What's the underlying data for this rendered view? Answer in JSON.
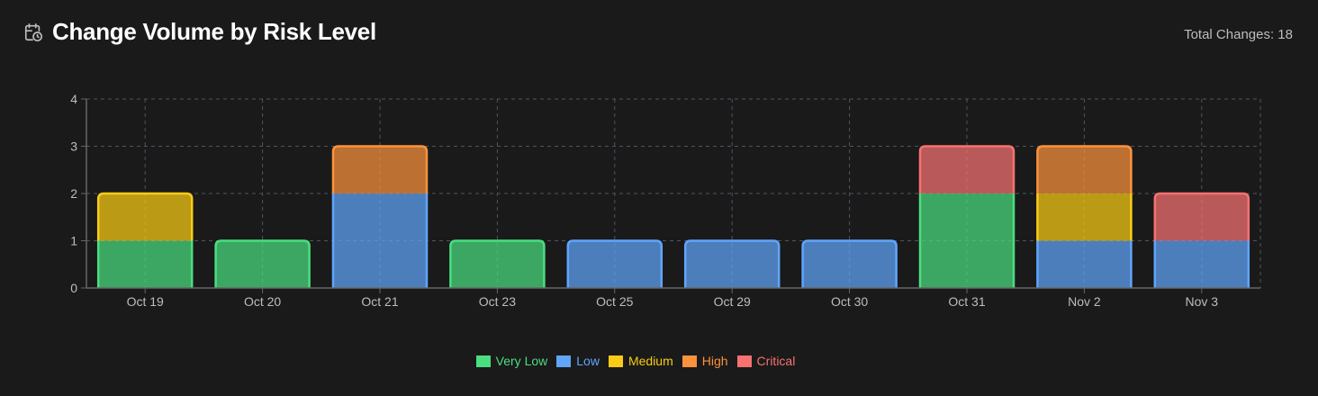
{
  "header": {
    "title": "Change Volume by Risk Level",
    "icon": "calendar-clock-icon",
    "total_label": "Total Changes: 18"
  },
  "chart_data": {
    "type": "bar",
    "stacked": true,
    "categories": [
      "Oct 19",
      "Oct 20",
      "Oct 21",
      "Oct 23",
      "Oct 25",
      "Oct 29",
      "Oct 30",
      "Oct 31",
      "Nov 2",
      "Nov 3"
    ],
    "series": [
      {
        "name": "Very Low",
        "color": "#4ade80",
        "values": [
          1,
          1,
          0,
          1,
          0,
          0,
          0,
          2,
          0,
          0
        ]
      },
      {
        "name": "Low",
        "color": "#60a5fa",
        "values": [
          0,
          0,
          2,
          0,
          1,
          1,
          1,
          0,
          1,
          1
        ]
      },
      {
        "name": "Medium",
        "color": "#facc15",
        "values": [
          1,
          0,
          0,
          0,
          0,
          0,
          0,
          0,
          1,
          0
        ]
      },
      {
        "name": "High",
        "color": "#fb923c",
        "values": [
          0,
          0,
          1,
          0,
          0,
          0,
          0,
          0,
          1,
          0
        ]
      },
      {
        "name": "Critical",
        "color": "#f87171",
        "values": [
          0,
          0,
          0,
          0,
          0,
          0,
          0,
          1,
          0,
          1
        ]
      }
    ],
    "yticks": [
      "0",
      "1",
      "2",
      "3",
      "4"
    ],
    "ylim": [
      0,
      4
    ],
    "grid": true,
    "legend_position": "bottom"
  }
}
